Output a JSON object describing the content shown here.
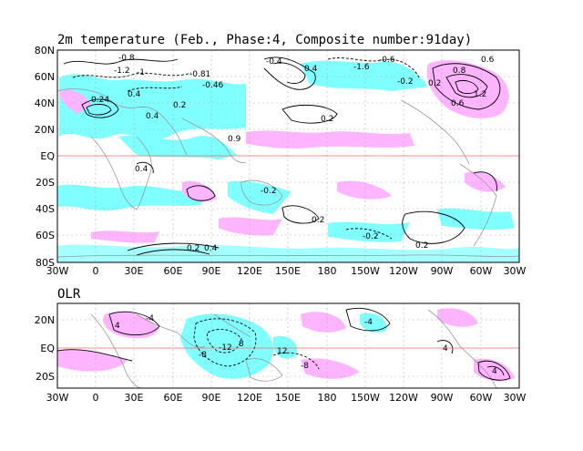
{
  "figure": {
    "top_panel": {
      "title": "2m temperature (Feb., Phase:4, Composite number:91day)",
      "lat_ticks": [
        "80N",
        "60N",
        "40N",
        "20N",
        "EQ",
        "20S",
        "40S",
        "60S",
        "80S"
      ],
      "lon_ticks": [
        "30W",
        "0",
        "30E",
        "60E",
        "90E",
        "120E",
        "150E",
        "180",
        "150W",
        "120W",
        "90W",
        "60W",
        "30W"
      ],
      "contour_labels": [
        "-0.8",
        "-1.2",
        "-0.4",
        "0.4",
        "-0.6",
        "-0.2",
        "0.2",
        "0.6",
        "0.8",
        "-1",
        "1.2",
        "-0.81",
        "0.9",
        "-0.46",
        "0.24",
        "0.2",
        "-0.2",
        "0.2",
        "0.4",
        "0.2",
        "-0.2",
        "0.2",
        "0.4",
        "0.6",
        "-1.6",
        "0.4",
        "0.2",
        "0.4"
      ]
    },
    "bottom_panel": {
      "title": "OLR",
      "lat_ticks": [
        "20N",
        "EQ",
        "20S"
      ],
      "lon_ticks": [
        "30W",
        "0",
        "30E",
        "60E",
        "90E",
        "120E",
        "150E",
        "180",
        "150W",
        "120W",
        "90W",
        "60W",
        "30W"
      ],
      "contour_labels": [
        "-4",
        "4",
        "8",
        "-8",
        "12",
        "-12",
        "4",
        "-4",
        "-8",
        "4"
      ]
    },
    "colors": {
      "positive_shade": "#ffb4ff",
      "negative_shade": "#7fffff",
      "equator_line": "#ff6060",
      "coastline": "#999999",
      "contour": "#000000"
    }
  }
}
